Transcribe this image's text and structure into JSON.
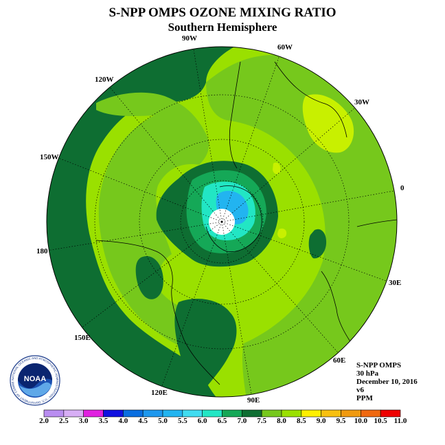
{
  "title": "S-NPP OMPS OZONE MIXING RATIO",
  "subtitle": "Southern Hemisphere",
  "longitude_labels": [
    "90W",
    "60W",
    "30W",
    "0",
    "30E",
    "60E",
    "90E",
    "120E",
    "150E",
    "180",
    "150W",
    "120W"
  ],
  "info": {
    "instrument": "S-NPP OMPS",
    "level": "30 hPa",
    "date": "December 10, 2016",
    "version": "v6",
    "units": "PPM"
  },
  "logo": {
    "text": "NOAA",
    "ring_text": "NATIONAL OCEANIC AND ATMOSPHERIC ADMINISTRATION · U.S. DEPARTMENT OF COMMERCE"
  },
  "colorbar": {
    "ticks": [
      "2.0",
      "2.5",
      "3.0",
      "3.5",
      "4.0",
      "4.5",
      "5.0",
      "5.5",
      "6.0",
      "6.5",
      "7.0",
      "7.5",
      "8.0",
      "8.5",
      "9.0",
      "9.5",
      "10.0",
      "10.5",
      "11.0"
    ],
    "colors": [
      "#b98df0",
      "#d7aef5",
      "#e020e0",
      "#1010e0",
      "#0a6ee0",
      "#1e98ee",
      "#22b4f0",
      "#40dcf0",
      "#22e6c4",
      "#15a857",
      "#0e6e32",
      "#76c81c",
      "#9ae000",
      "#fff000",
      "#f8c010",
      "#f09a10",
      "#ef6810",
      "#ee0000",
      "#7a5a42"
    ]
  },
  "chart_data": {
    "type": "polar-map",
    "projection": "south-polar-stereographic",
    "variable": "ozone mixing ratio",
    "units": "PPM",
    "pressure_level": "30 hPa",
    "date": "December 10, 2016",
    "contour_levels": [
      2.0,
      2.5,
      3.0,
      3.5,
      4.0,
      4.5,
      5.0,
      5.5,
      6.0,
      6.5,
      7.0,
      7.5,
      8.0,
      8.5,
      9.0,
      9.5,
      10.0,
      10.5,
      11.0
    ],
    "regions": [
      {
        "range": [
          7.0,
          7.5
        ],
        "location": "outer ring over Pacific sector and pole-surrounding band"
      },
      {
        "range": [
          7.5,
          8.0
        ],
        "location": "mid-latitudes, most of the hemisphere"
      },
      {
        "range": [
          8.0,
          8.5
        ],
        "location": "small patches near 30W and 60W"
      },
      {
        "range": [
          6.5,
          7.0
        ],
        "location": "ring around the polar vortex"
      },
      {
        "range": [
          5.5,
          6.5
        ],
        "location": "inner polar vortex"
      },
      {
        "range": [
          5.0,
          5.5
        ],
        "location": "vortex core near the pole"
      },
      {
        "range": null,
        "location": "no data at the pole"
      }
    ]
  }
}
